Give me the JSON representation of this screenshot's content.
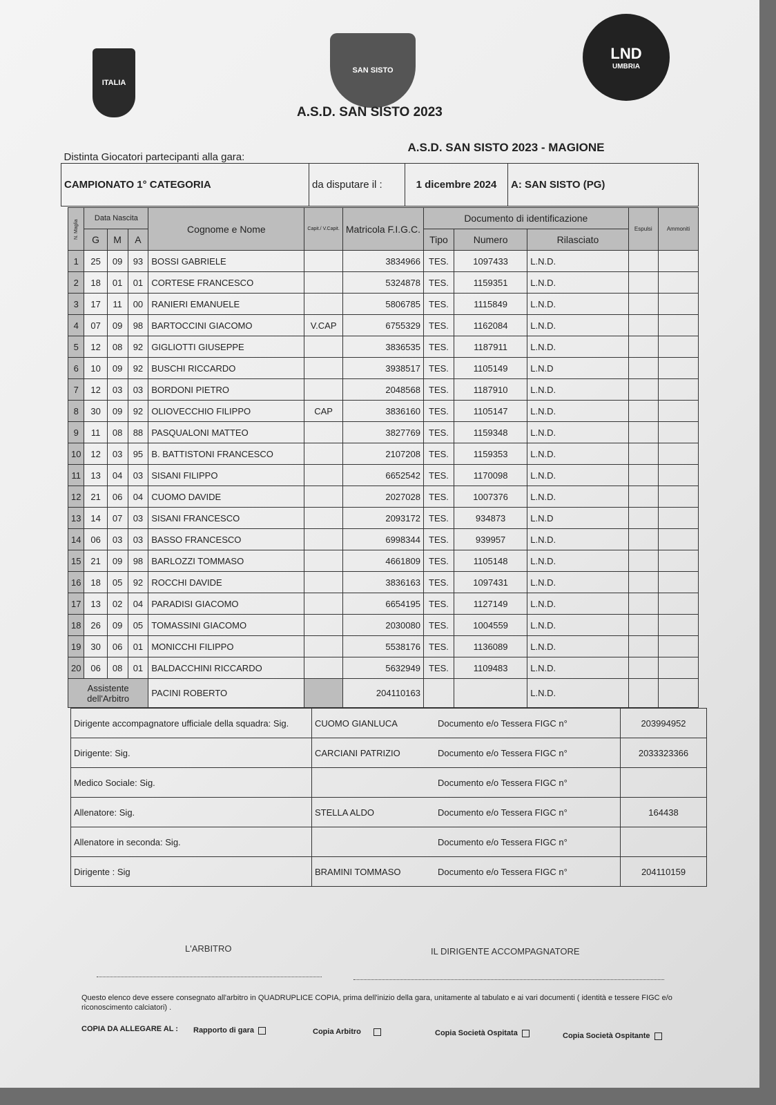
{
  "header": {
    "title": "A.S.D.  SAN SISTO 2023",
    "logo_left": "ITALIA",
    "logo_center": "SAN SISTO",
    "logo_right": "LND",
    "logo_right_sub": "UMBRIA"
  },
  "form": {
    "distinta_label": "Distinta Giocatori partecipanti alla gara:",
    "match": "A.S.D. SAN SISTO 2023 - MAGIONE",
    "championship": "CAMPIONATO  1° CATEGORIA",
    "date_label": "da disputare il :",
    "date": "1 dicembre 2024",
    "venue": "A: SAN SISTO  (PG)"
  },
  "columns": {
    "n": "N. Maglia",
    "data_nascita": "Data Nascita",
    "g": "G",
    "m": "M",
    "a": "A",
    "name": "Cognome e Nome",
    "cap": "Capit./ V.Capit.",
    "matricola": "Matricola F.I.G.C.",
    "documento": "Documento di identificazione",
    "tipo": "Tipo",
    "numero": "Numero",
    "rilasciato": "Rilasciato",
    "espulsi": "Espulsi",
    "ammoniti": "Ammoniti"
  },
  "players": [
    {
      "n": "1",
      "g": "25",
      "m": "09",
      "a": "93",
      "name": "BOSSI GABRIELE",
      "cap": "",
      "matricola": "3834966",
      "tipo": "TES.",
      "numero": "1097433",
      "rilasciato": "L.N.D."
    },
    {
      "n": "2",
      "g": "18",
      "m": "01",
      "a": "01",
      "name": "CORTESE FRANCESCO",
      "cap": "",
      "matricola": "5324878",
      "tipo": "TES.",
      "numero": "1159351",
      "rilasciato": "L.N.D."
    },
    {
      "n": "3",
      "g": "17",
      "m": "11",
      "a": "00",
      "name": "RANIERI EMANUELE",
      "cap": "",
      "matricola": "5806785",
      "tipo": "TES.",
      "numero": "1115849",
      "rilasciato": "L.N.D."
    },
    {
      "n": "4",
      "g": "07",
      "m": "09",
      "a": "98",
      "name": "BARTOCCINI GIACOMO",
      "cap": "V.CAP",
      "matricola": "6755329",
      "tipo": "TES.",
      "numero": "1162084",
      "rilasciato": "L.N.D."
    },
    {
      "n": "5",
      "g": "12",
      "m": "08",
      "a": "92",
      "name": "GIGLIOTTI GIUSEPPE",
      "cap": "",
      "matricola": "3836535",
      "tipo": "TES.",
      "numero": "1187911",
      "rilasciato": "L.N.D."
    },
    {
      "n": "6",
      "g": "10",
      "m": "09",
      "a": "92",
      "name": "BUSCHI RICCARDO",
      "cap": "",
      "matricola": "3938517",
      "tipo": "TES.",
      "numero": "1105149",
      "rilasciato": "L.N.D"
    },
    {
      "n": "7",
      "g": "12",
      "m": "03",
      "a": "03",
      "name": "BORDONI PIETRO",
      "cap": "",
      "matricola": "2048568",
      "tipo": "TES.",
      "numero": "1187910",
      "rilasciato": "L.N.D."
    },
    {
      "n": "8",
      "g": "30",
      "m": "09",
      "a": "92",
      "name": "OLIOVECCHIO FILIPPO",
      "cap": "CAP",
      "matricola": "3836160",
      "tipo": "TES.",
      "numero": "1105147",
      "rilasciato": "L.N.D."
    },
    {
      "n": "9",
      "g": "11",
      "m": "08",
      "a": "88",
      "name": "PASQUALONI MATTEO",
      "cap": "",
      "matricola": "3827769",
      "tipo": "TES.",
      "numero": "1159348",
      "rilasciato": "L.N.D."
    },
    {
      "n": "10",
      "g": "12",
      "m": "03",
      "a": "95",
      "name": "B. BATTISTONI FRANCESCO",
      "cap": "",
      "matricola": "2107208",
      "tipo": "TES.",
      "numero": "1159353",
      "rilasciato": "L.N.D."
    },
    {
      "n": "11",
      "g": "13",
      "m": "04",
      "a": "03",
      "name": "SISANI FILIPPO",
      "cap": "",
      "matricola": "6652542",
      "tipo": "TES.",
      "numero": "1170098",
      "rilasciato": "L.N.D."
    },
    {
      "n": "12",
      "g": "21",
      "m": "06",
      "a": "04",
      "name": "CUOMO DAVIDE",
      "cap": "",
      "matricola": "2027028",
      "tipo": "TES.",
      "numero": "1007376",
      "rilasciato": "L.N.D."
    },
    {
      "n": "13",
      "g": "14",
      "m": "07",
      "a": "03",
      "name": "SISANI FRANCESCO",
      "cap": "",
      "matricola": "2093172",
      "tipo": "TES.",
      "numero": "934873",
      "rilasciato": "L.N.D"
    },
    {
      "n": "14",
      "g": "06",
      "m": "03",
      "a": "03",
      "name": "BASSO FRANCESCO",
      "cap": "",
      "matricola": "6998344",
      "tipo": "TES.",
      "numero": "939957",
      "rilasciato": "L.N.D."
    },
    {
      "n": "15",
      "g": "21",
      "m": "09",
      "a": "98",
      "name": "BARLOZZI TOMMASO",
      "cap": "",
      "matricola": "4661809",
      "tipo": "TES.",
      "numero": "1105148",
      "rilasciato": "L.N.D."
    },
    {
      "n": "16",
      "g": "18",
      "m": "05",
      "a": "92",
      "name": "ROCCHI DAVIDE",
      "cap": "",
      "matricola": "3836163",
      "tipo": "TES.",
      "numero": "1097431",
      "rilasciato": "L.N.D."
    },
    {
      "n": "17",
      "g": "13",
      "m": "02",
      "a": "04",
      "name": "PARADISI GIACOMO",
      "cap": "",
      "matricola": "6654195",
      "tipo": "TES.",
      "numero": "1127149",
      "rilasciato": "L.N.D."
    },
    {
      "n": "18",
      "g": "26",
      "m": "09",
      "a": "05",
      "name": "TOMASSINI GIACOMO",
      "cap": "",
      "matricola": "2030080",
      "tipo": "TES.",
      "numero": "1004559",
      "rilasciato": "L.N.D."
    },
    {
      "n": "19",
      "g": "30",
      "m": "06",
      "a": "01",
      "name": "MONICCHI FILIPPO",
      "cap": "",
      "matricola": "5538176",
      "tipo": "TES.",
      "numero": "1136089",
      "rilasciato": "L.N.D."
    },
    {
      "n": "20",
      "g": "06",
      "m": "08",
      "a": "01",
      "name": "BALDACCHINI RICCARDO",
      "cap": "",
      "matricola": "5632949",
      "tipo": "TES.",
      "numero": "1109483",
      "rilasciato": "L.N.D."
    }
  ],
  "assistant": {
    "label": "Assistente dell'Arbitro",
    "name": "PACINI ROBERTO",
    "matricola": "204110163",
    "rilasciato": "L.N.D."
  },
  "staff": [
    {
      "role": "Dirigente accompagnatore ufficiale della squadra: Sig.",
      "name": "CUOMO GIANLUCA",
      "doc_label": "Documento e/o Tessera FIGC n°",
      "doc": "203994952"
    },
    {
      "role": "Dirigente: Sig.",
      "name": "CARCIANI PATRIZIO",
      "doc_label": "Documento e/o Tessera FIGC n°",
      "doc": "2033323366"
    },
    {
      "role": "Medico Sociale: Sig.",
      "name": "",
      "doc_label": "Documento e/o Tessera FIGC n°",
      "doc": ""
    },
    {
      "role": "Allenatore: Sig.",
      "name": "STELLA ALDO",
      "doc_label": "Documento e/o Tessera FIGC n°",
      "doc": "164438"
    },
    {
      "role": "Allenatore in seconda: Sig.",
      "name": "",
      "doc_label": "Documento e/o Tessera FIGC n°",
      "doc": ""
    },
    {
      "role": "Dirigente : Sig",
      "name": "BRAMINI TOMMASO",
      "doc_label": "Documento e/o Tessera FIGC n°",
      "doc": "204110159"
    }
  ],
  "signatures": {
    "referee": "L'ARBITRO",
    "manager": "IL DIRIGENTE ACCOMPAGNATORE"
  },
  "footer": {
    "note": "Questo elenco deve essere consegnato all'arbitro in QUADRUPLICE COPIA, prima dell'inizio della gara, unitamente al tabulato e ai vari documenti ( identità e tessere FIGC e/o riconoscimento calciatori) .",
    "copy_label": "COPIA DA ALLEGARE AL :",
    "options": [
      "Rapporto di gara",
      "Copia Arbitro",
      "Copia Società Ospitata",
      "Copia Società Ospitante"
    ]
  }
}
